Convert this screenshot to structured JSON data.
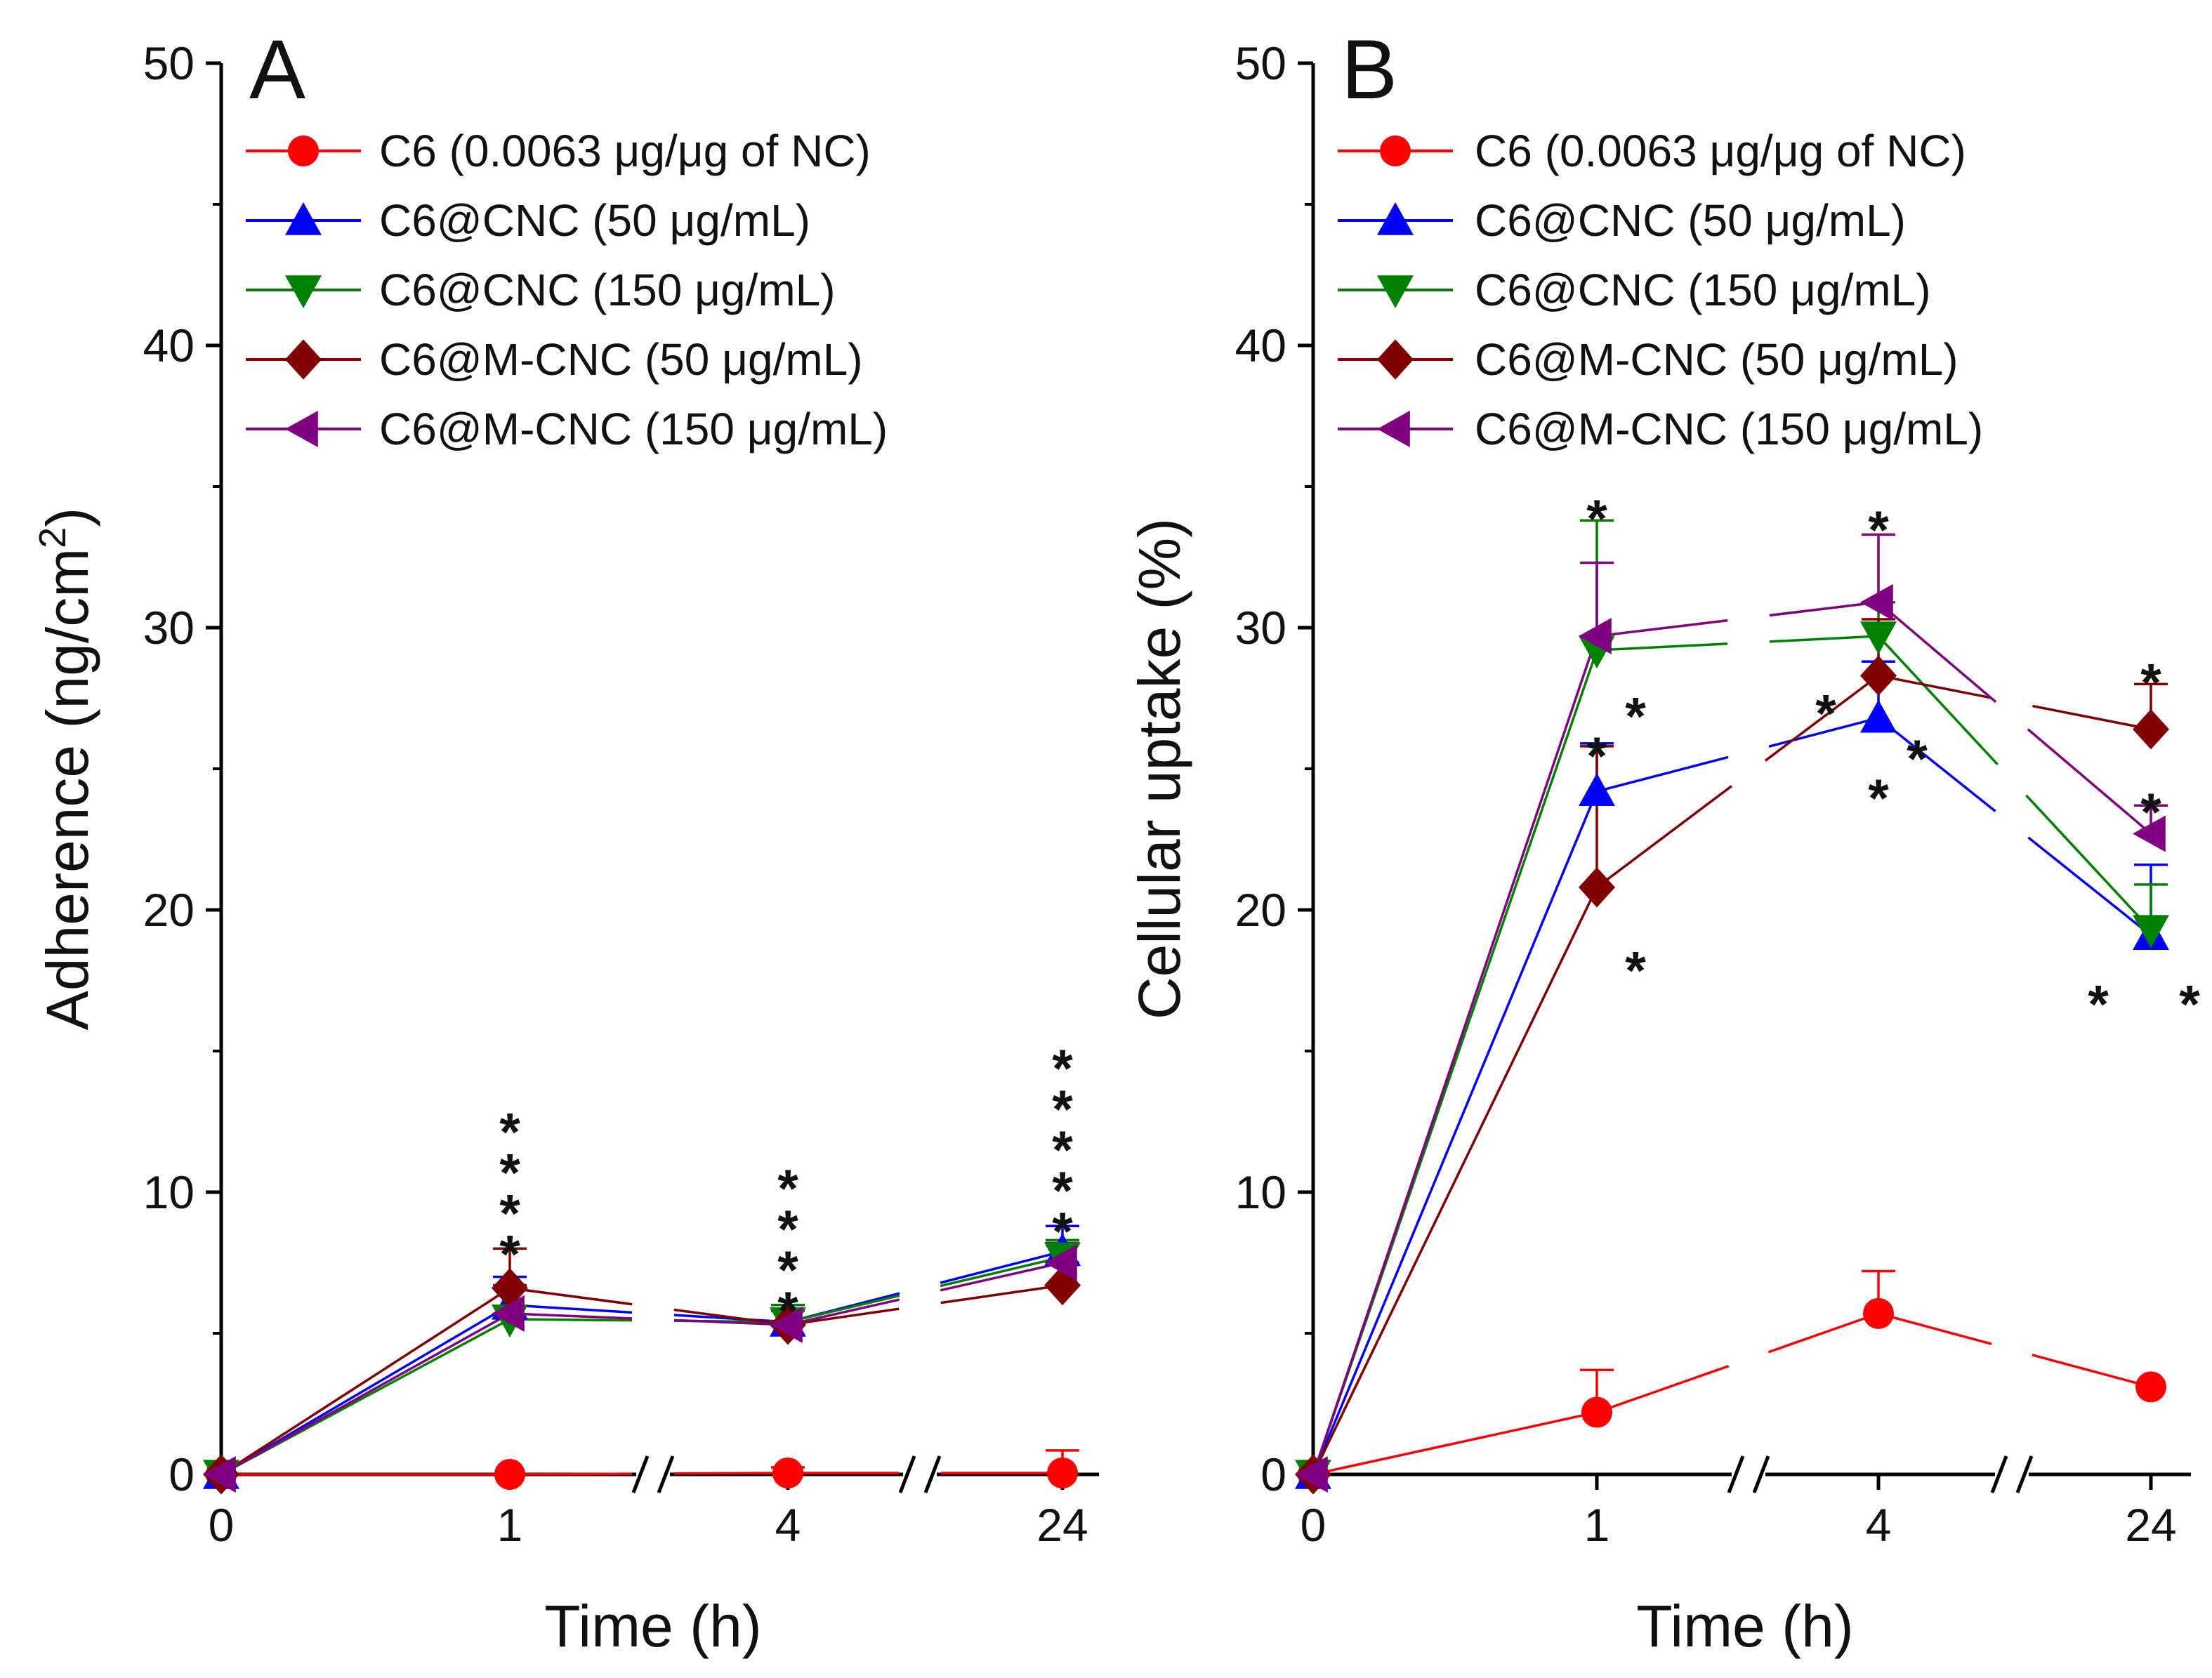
{
  "chart_data": [
    {
      "type": "line",
      "panel_label": "A",
      "xlabel": "Time (h)",
      "ylabel": "Adherence (ng/cm",
      "ylabel_superscript": "2",
      "ylabel_close": ")",
      "categories": [
        "0",
        "1",
        "4",
        "24"
      ],
      "axis_breaks_between": [
        [
          1,
          2
        ],
        [
          2,
          3
        ]
      ],
      "ylim": [
        0,
        50
      ],
      "yticks": [
        0,
        10,
        20,
        30,
        40,
        50
      ],
      "legend_position": "top-left",
      "series": [
        {
          "name": "C6 (0.0063 μg/μg of NC)",
          "color": "#ff0000",
          "marker": "circle",
          "values": [
            0,
            0.0,
            0.05,
            0.05
          ],
          "errors": [
            0,
            0,
            0.2,
            0.8
          ]
        },
        {
          "name": "C6@CNC (50 μg/mL)",
          "color": "#0000ff",
          "marker": "triangle-up",
          "values": [
            0,
            6.0,
            5.4,
            7.9
          ],
          "errors": [
            0,
            1.0,
            0.6,
            0.9
          ]
        },
        {
          "name": "C6@CNC (150 μg/mL)",
          "color": "#008000",
          "marker": "triangle-down",
          "values": [
            0,
            5.5,
            5.4,
            7.7
          ],
          "errors": [
            0,
            1.2,
            0.6,
            0.6
          ]
        },
        {
          "name": "C6@M-CNC (50 μg/mL)",
          "color": "#800000",
          "marker": "diamond",
          "values": [
            0,
            6.6,
            5.3,
            6.7
          ],
          "errors": [
            0,
            1.4,
            0.5,
            0.8
          ]
        },
        {
          "name": "C6@M-CNC (150 μg/mL)",
          "color": "#800080",
          "marker": "triangle-left",
          "values": [
            0,
            5.7,
            5.3,
            7.5
          ],
          "errors": [
            0,
            1.0,
            0.5,
            0.7
          ]
        }
      ],
      "significance": [
        {
          "x_index": 1,
          "count": 4,
          "label": "*"
        },
        {
          "x_index": 2,
          "count": 4,
          "label": "*"
        },
        {
          "x_index": 3,
          "count": 5,
          "label": "*"
        }
      ]
    },
    {
      "type": "line",
      "panel_label": "B",
      "xlabel": "Time (h)",
      "ylabel": "Cellular uptake (%)",
      "categories": [
        "0",
        "1",
        "4",
        "24"
      ],
      "axis_breaks_between": [
        [
          1,
          2
        ],
        [
          2,
          3
        ]
      ],
      "ylim": [
        0,
        50
      ],
      "yticks": [
        0,
        10,
        20,
        30,
        40,
        50
      ],
      "legend_position": "top-left",
      "series": [
        {
          "name": "C6 (0.0063 μg/μg of NC)",
          "color": "#ff0000",
          "marker": "circle",
          "values": [
            0,
            2.2,
            5.7,
            3.1
          ],
          "errors": [
            0,
            1.5,
            1.5,
            0
          ]
        },
        {
          "name": "C6@CNC (50 μg/mL)",
          "color": "#0000ff",
          "marker": "triangle-up",
          "values": [
            0,
            24.2,
            26.8,
            19.1
          ],
          "errors": [
            0,
            1.7,
            2.0,
            2.5
          ]
        },
        {
          "name": "C6@CNC (150 μg/mL)",
          "color": "#008000",
          "marker": "triangle-down",
          "values": [
            0,
            29.2,
            29.7,
            19.3
          ],
          "errors": [
            0,
            4.6,
            1.2,
            1.6
          ]
        },
        {
          "name": "C6@M-CNC (50 μg/mL)",
          "color": "#800000",
          "marker": "diamond",
          "values": [
            0,
            20.8,
            28.3,
            26.4
          ],
          "errors": [
            0,
            5.0,
            2.0,
            1.6
          ]
        },
        {
          "name": "C6@M-CNC (150 μg/mL)",
          "color": "#800080",
          "marker": "triangle-left",
          "values": [
            0,
            29.7,
            30.9,
            22.7
          ],
          "errors": [
            0,
            2.6,
            2.4,
            1.0
          ]
        }
      ],
      "significance": [
        {
          "label": "*",
          "x_index": 1,
          "value": 34.2,
          "offset": "center"
        },
        {
          "label": "*",
          "x_index": 1,
          "value": 27.2,
          "offset": "right"
        },
        {
          "label": "*",
          "x_index": 1,
          "value": 25.8,
          "offset": "center"
        },
        {
          "label": "*",
          "x_index": 1,
          "value": 18.2,
          "offset": "right"
        },
        {
          "label": "*",
          "x_index": 2,
          "value": 33.8,
          "offset": "center"
        },
        {
          "label": "*",
          "x_index": 2,
          "value": 27.3,
          "offset": "left"
        },
        {
          "label": "*",
          "x_index": 2,
          "value": 25.7,
          "offset": "right"
        },
        {
          "label": "*",
          "x_index": 2,
          "value": 24.3,
          "offset": "center"
        },
        {
          "label": "*",
          "x_index": 3,
          "value": 28.4,
          "offset": "center"
        },
        {
          "label": "*",
          "x_index": 3,
          "value": 23.8,
          "offset": "center"
        },
        {
          "label": "*",
          "x_index": 3,
          "value": 17.0,
          "offset": "left"
        },
        {
          "label": "*",
          "x_index": 3,
          "value": 17.0,
          "offset": "right"
        }
      ]
    }
  ]
}
